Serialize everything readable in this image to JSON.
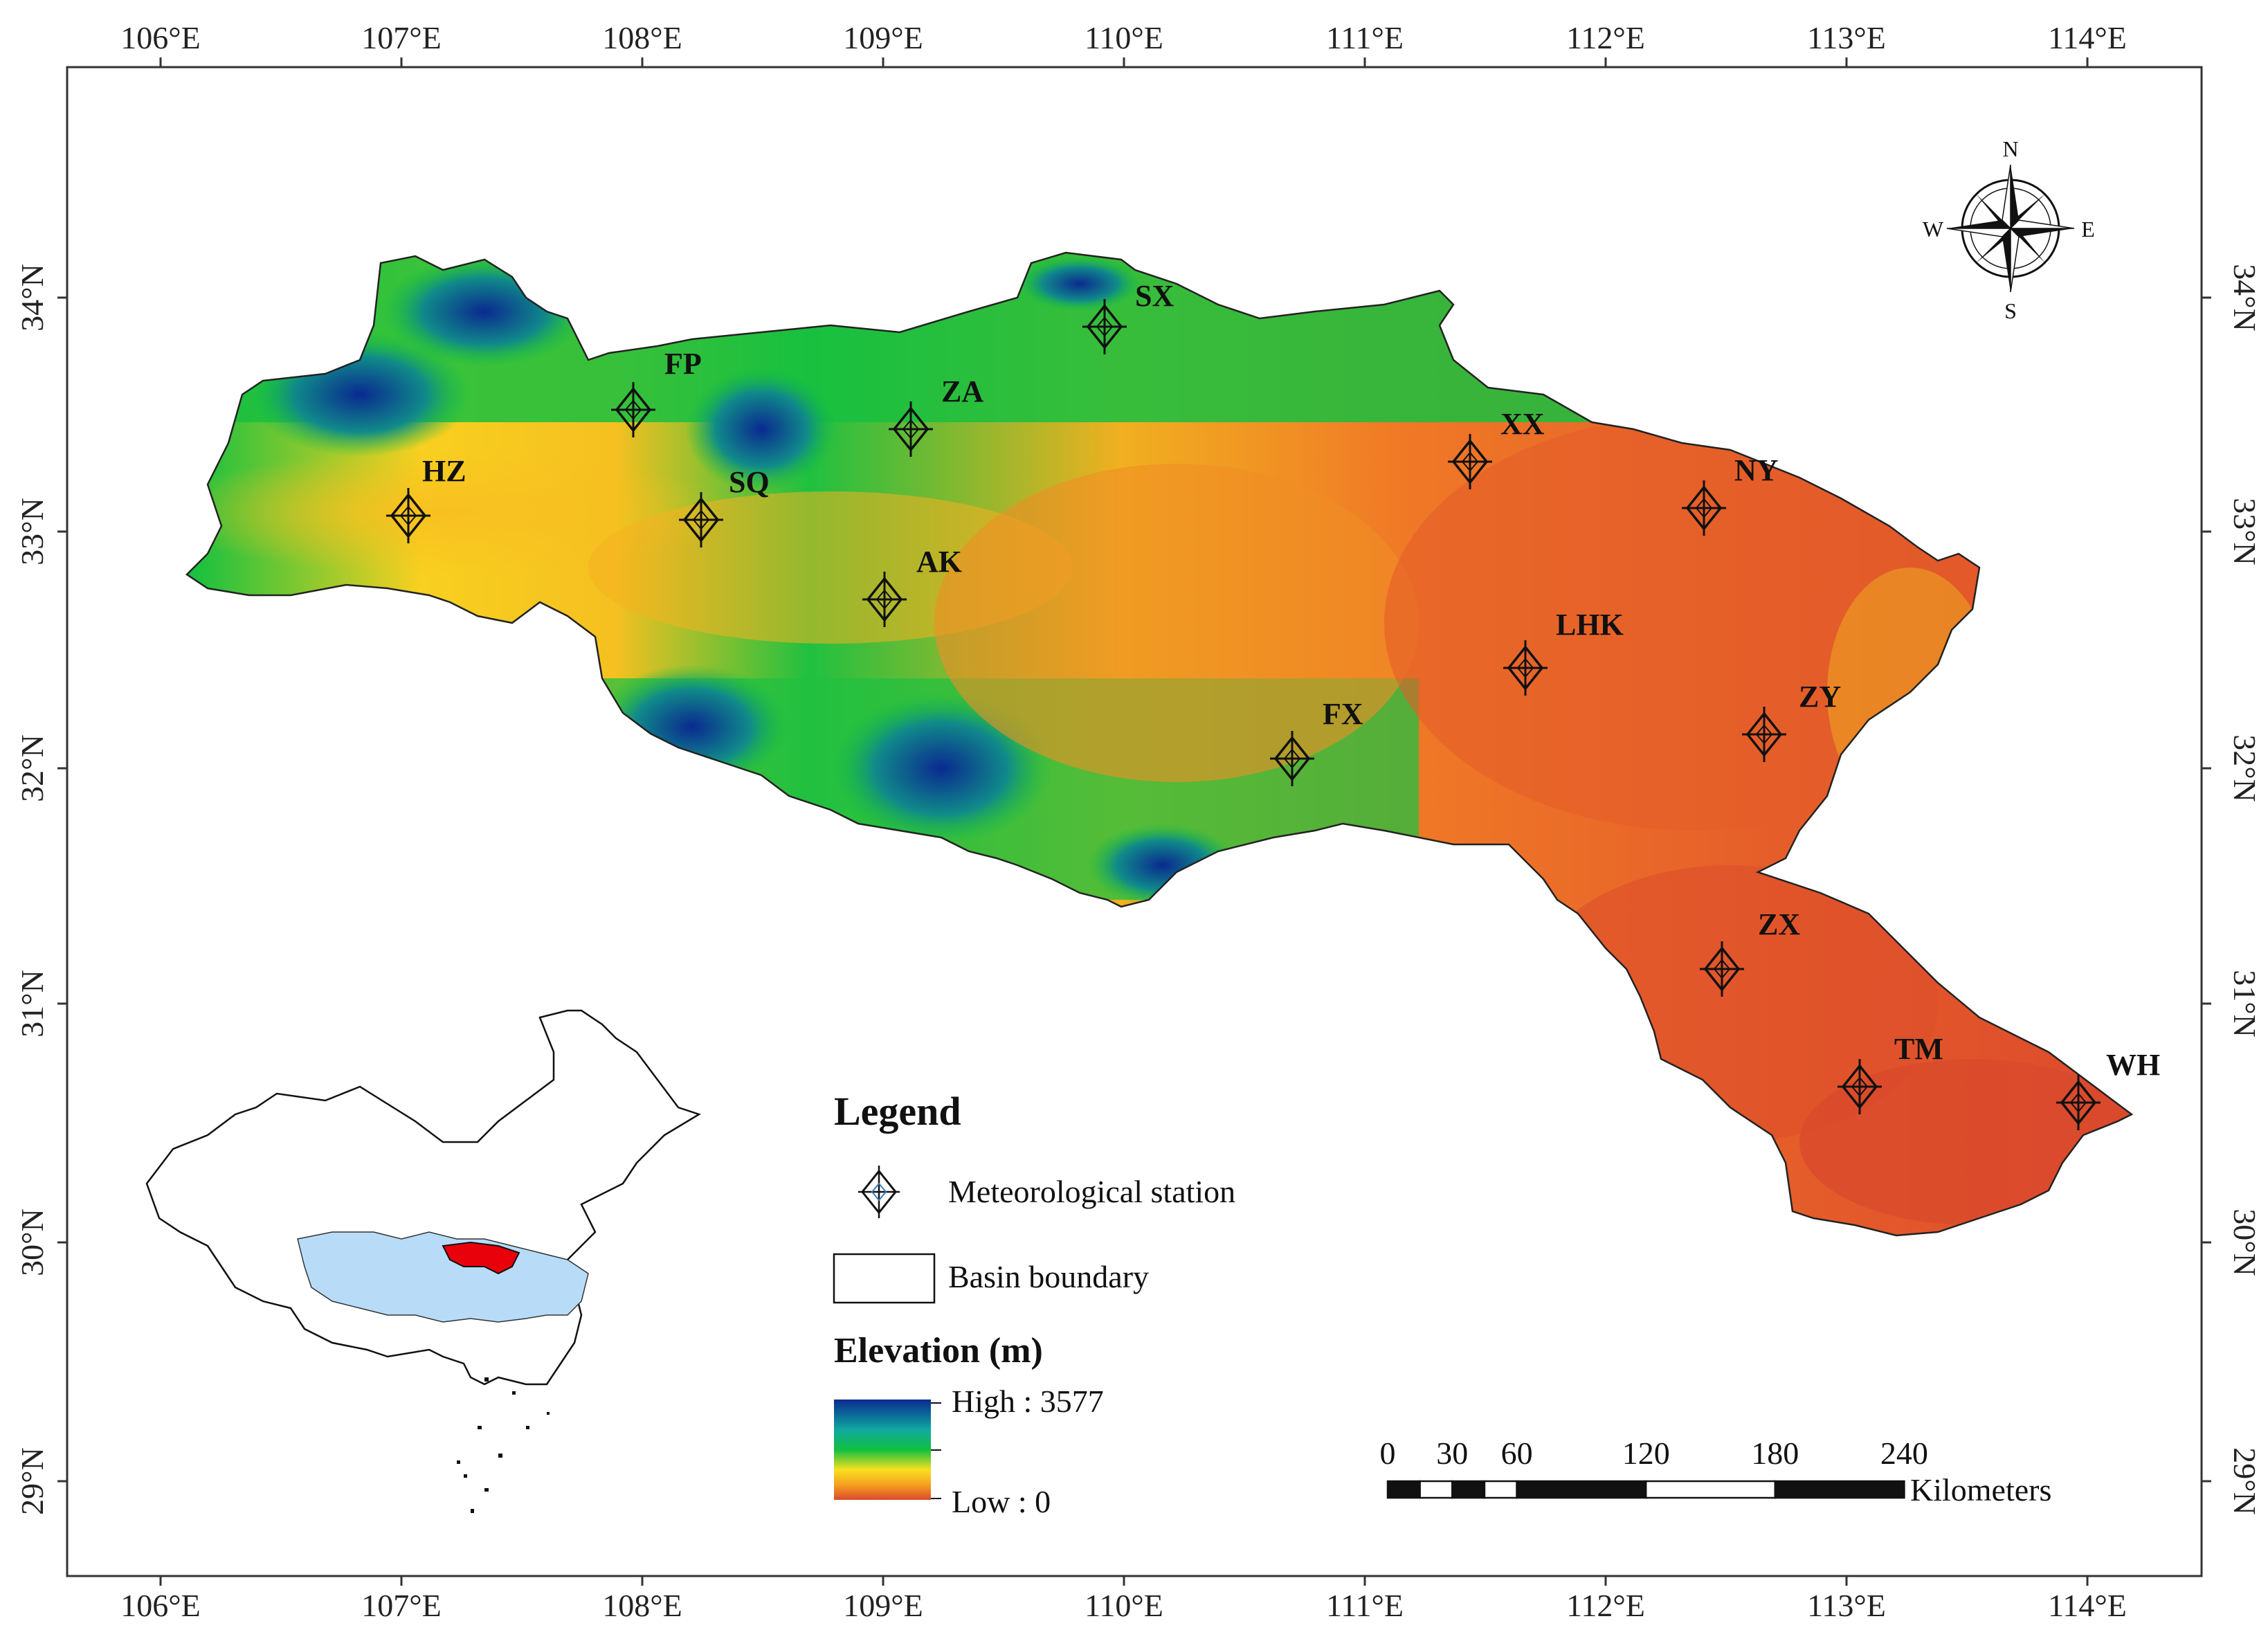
{
  "map": {
    "lon_ticks": [
      "106°E",
      "107°E",
      "108°E",
      "109°E",
      "110°E",
      "111°E",
      "112°E",
      "113°E",
      "114°E"
    ],
    "lat_ticks": [
      "34°N",
      "33°N",
      "32°N",
      "31°N",
      "30°N",
      "29°N"
    ],
    "stations": [
      {
        "code": "HZ"
      },
      {
        "code": "FP"
      },
      {
        "code": "SQ"
      },
      {
        "code": "ZA"
      },
      {
        "code": "AK"
      },
      {
        "code": "SX"
      },
      {
        "code": "XX"
      },
      {
        "code": "NY"
      },
      {
        "code": "LHK"
      },
      {
        "code": "FX"
      },
      {
        "code": "ZY"
      },
      {
        "code": "ZX"
      },
      {
        "code": "TM"
      },
      {
        "code": "WH"
      }
    ],
    "compass": {
      "n": "N",
      "s": "S",
      "e": "E",
      "w": "W"
    },
    "legend": {
      "title": "Legend",
      "station_label": "Meteorological station",
      "boundary_label": "Basin boundary",
      "elevation_title": "Elevation (m)",
      "high_label": "High : 3577",
      "low_label": "Low : 0"
    },
    "scale_bar": {
      "labels": [
        "0",
        "30",
        "60",
        "120",
        "180",
        "240"
      ],
      "unit": "Kilometers"
    },
    "colors": {
      "low": "#d94a2c",
      "mid_low": "#f5a020",
      "mid": "#f8e020",
      "mid_high": "#10c040",
      "high": "#0a2a90",
      "highlight": "#e8000b",
      "basin_china": "#b8dcf8"
    }
  }
}
